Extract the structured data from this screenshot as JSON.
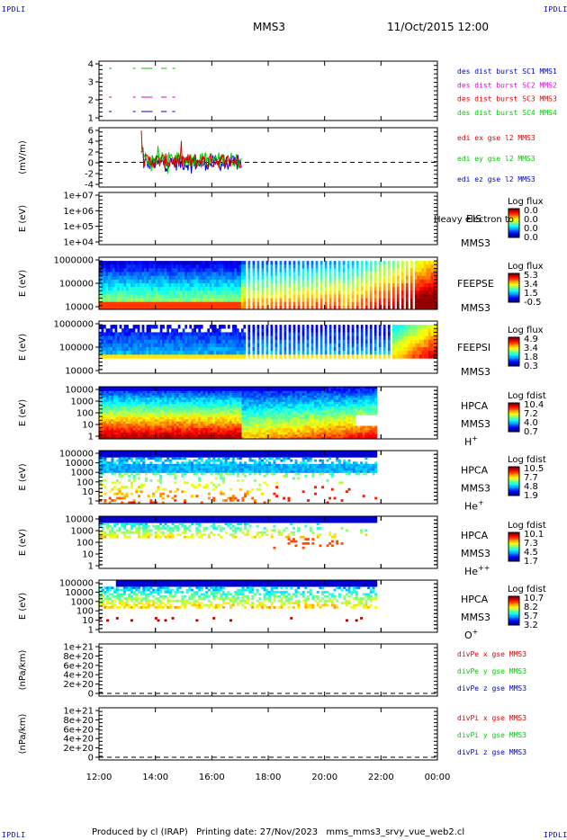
{
  "corner_tags": [
    "IPDLI",
    "IPDLI",
    "IPDLI",
    "IPDLI"
  ],
  "header": {
    "spacecraft": "MMS3",
    "datetime": "11/Oct/2015 12:00"
  },
  "footer": {
    "producer": "Produced by cl (IRAP)",
    "printed": "Printing date: 27/Nov/2023",
    "script": "mms_mms3_srvy_vue_web2.cl"
  },
  "colors": {
    "red": "#dd0000",
    "magenta": "#dd00dd",
    "green": "#00cc00",
    "blue": "#0000cc",
    "axis": "#000000"
  },
  "chart_data": [
    {
      "id": "burst",
      "type": "scatter",
      "yticks": [
        "1",
        "2",
        "3",
        "4"
      ],
      "ylim": [
        0.5,
        4.5
      ],
      "series": [
        {
          "name": "des dist burst SC1 MMS1",
          "color": "#0000cc"
        },
        {
          "name": "des dist burst SC2 MMS2",
          "color": "#dd00dd"
        },
        {
          "name": "des dist burst SC3 MMS3",
          "color": "#dd0000"
        },
        {
          "name": "des dist burst SC4 MMS4",
          "color": "#00cc00"
        }
      ]
    },
    {
      "id": "edi",
      "type": "line",
      "ylabel": "(mV/m)",
      "yticks": [
        "6",
        "4",
        "2",
        "0",
        "-2",
        "-4"
      ],
      "ylim": [
        -5,
        7
      ],
      "series": [
        {
          "name": "edi ex gse l2 MMS3",
          "color": "#dd0000"
        },
        {
          "name": "edi ey gse l2 MMS3",
          "color": "#00cc00"
        },
        {
          "name": "edi ez gse l2 MMS3",
          "color": "#0000cc"
        }
      ]
    },
    {
      "id": "eis",
      "type": "heatmap",
      "ylabel": "E (eV)",
      "yticks": [
        "1e+07",
        "1e+06",
        "1e+05",
        "1e+04"
      ],
      "instrument": "EIS",
      "particle": "Heavy electron to",
      "spacecraft": "MMS3",
      "colorbar": {
        "title": "Log flux",
        "ticks": [
          "0.0",
          "0.0",
          "0.0",
          "0.0"
        ]
      }
    },
    {
      "id": "feepse",
      "type": "heatmap",
      "ylabel": "E (eV)",
      "yticks": [
        "1000000",
        "100000",
        "10000"
      ],
      "instrument": "FEEPSE",
      "spacecraft": "MMS3",
      "colorbar": {
        "title": "Log flux",
        "ticks": [
          "5.3",
          "3.4",
          "1.5",
          "-0.5"
        ]
      }
    },
    {
      "id": "feepsi",
      "type": "heatmap",
      "ylabel": "E (eV)",
      "yticks": [
        "1000000",
        "100000",
        "10000"
      ],
      "instrument": "FEEPSI",
      "spacecraft": "MMS3",
      "colorbar": {
        "title": "Log flux",
        "ticks": [
          "4.9",
          "3.4",
          "1.8",
          "0.3"
        ]
      }
    },
    {
      "id": "hpca_h",
      "type": "heatmap",
      "ylabel": "E (eV)",
      "yticks": [
        "10000",
        "1000",
        "100",
        "10",
        "1"
      ],
      "instrument": "HPCA",
      "spacecraft": "MMS3",
      "species": "H",
      "charge": "+",
      "colorbar": {
        "title": "Log fdist",
        "ticks": [
          "10.4",
          "7.2",
          "4.0",
          "0.7"
        ]
      }
    },
    {
      "id": "hpca_he",
      "type": "heatmap",
      "ylabel": "E (eV)",
      "yticks": [
        "100000",
        "10000",
        "1000",
        "100",
        "10",
        "1"
      ],
      "instrument": "HPCA",
      "spacecraft": "MMS3",
      "species": "He",
      "charge": "+",
      "colorbar": {
        "title": "Log fdist",
        "ticks": [
          "10.5",
          "7.7",
          "4.8",
          "1.9"
        ]
      }
    },
    {
      "id": "hpca_hepp",
      "type": "heatmap",
      "ylabel": "E (eV)",
      "yticks": [
        "10000",
        "1000",
        "100",
        "10",
        "1"
      ],
      "instrument": "HPCA",
      "spacecraft": "MMS3",
      "species": "He",
      "charge": "++",
      "colorbar": {
        "title": "Log fdist",
        "ticks": [
          "10.1",
          "7.3",
          "4.5",
          "1.7"
        ]
      }
    },
    {
      "id": "hpca_o",
      "type": "heatmap",
      "ylabel": "E (eV)",
      "yticks": [
        "100000",
        "10000",
        "1000",
        "100",
        "10",
        "1"
      ],
      "instrument": "HPCA",
      "spacecraft": "MMS3",
      "species": "O",
      "charge": "+",
      "colorbar": {
        "title": "Log fdist",
        "ticks": [
          "10.7",
          "8.2",
          "5.7",
          "3.2"
        ]
      }
    },
    {
      "id": "divpe",
      "type": "line",
      "ylabel": "(nPa/km)",
      "yticks": [
        "1e+21",
        "8e+20",
        "6e+20",
        "4e+20",
        "2e+20",
        "0"
      ],
      "series": [
        {
          "name": "divPe x gse MMS3",
          "color": "#dd0000"
        },
        {
          "name": "divPe y gse MMS3",
          "color": "#00cc00"
        },
        {
          "name": "divPe z gse MMS3",
          "color": "#0000cc"
        }
      ]
    },
    {
      "id": "divpi",
      "type": "line",
      "ylabel": "(nPa/km)",
      "yticks": [
        "1e+21",
        "8e+20",
        "6e+20",
        "4e+20",
        "2e+20",
        "0"
      ],
      "series": [
        {
          "name": "divPi x gse MMS3",
          "color": "#dd0000"
        },
        {
          "name": "divPi y gse MMS3",
          "color": "#00cc00"
        },
        {
          "name": "divPi z gse MMS3",
          "color": "#0000cc"
        }
      ]
    }
  ],
  "time_axis": {
    "ticks": [
      "12:00",
      "14:00",
      "16:00",
      "18:00",
      "20:00",
      "22:00",
      "00:00"
    ],
    "range_hours": [
      12,
      24
    ]
  }
}
